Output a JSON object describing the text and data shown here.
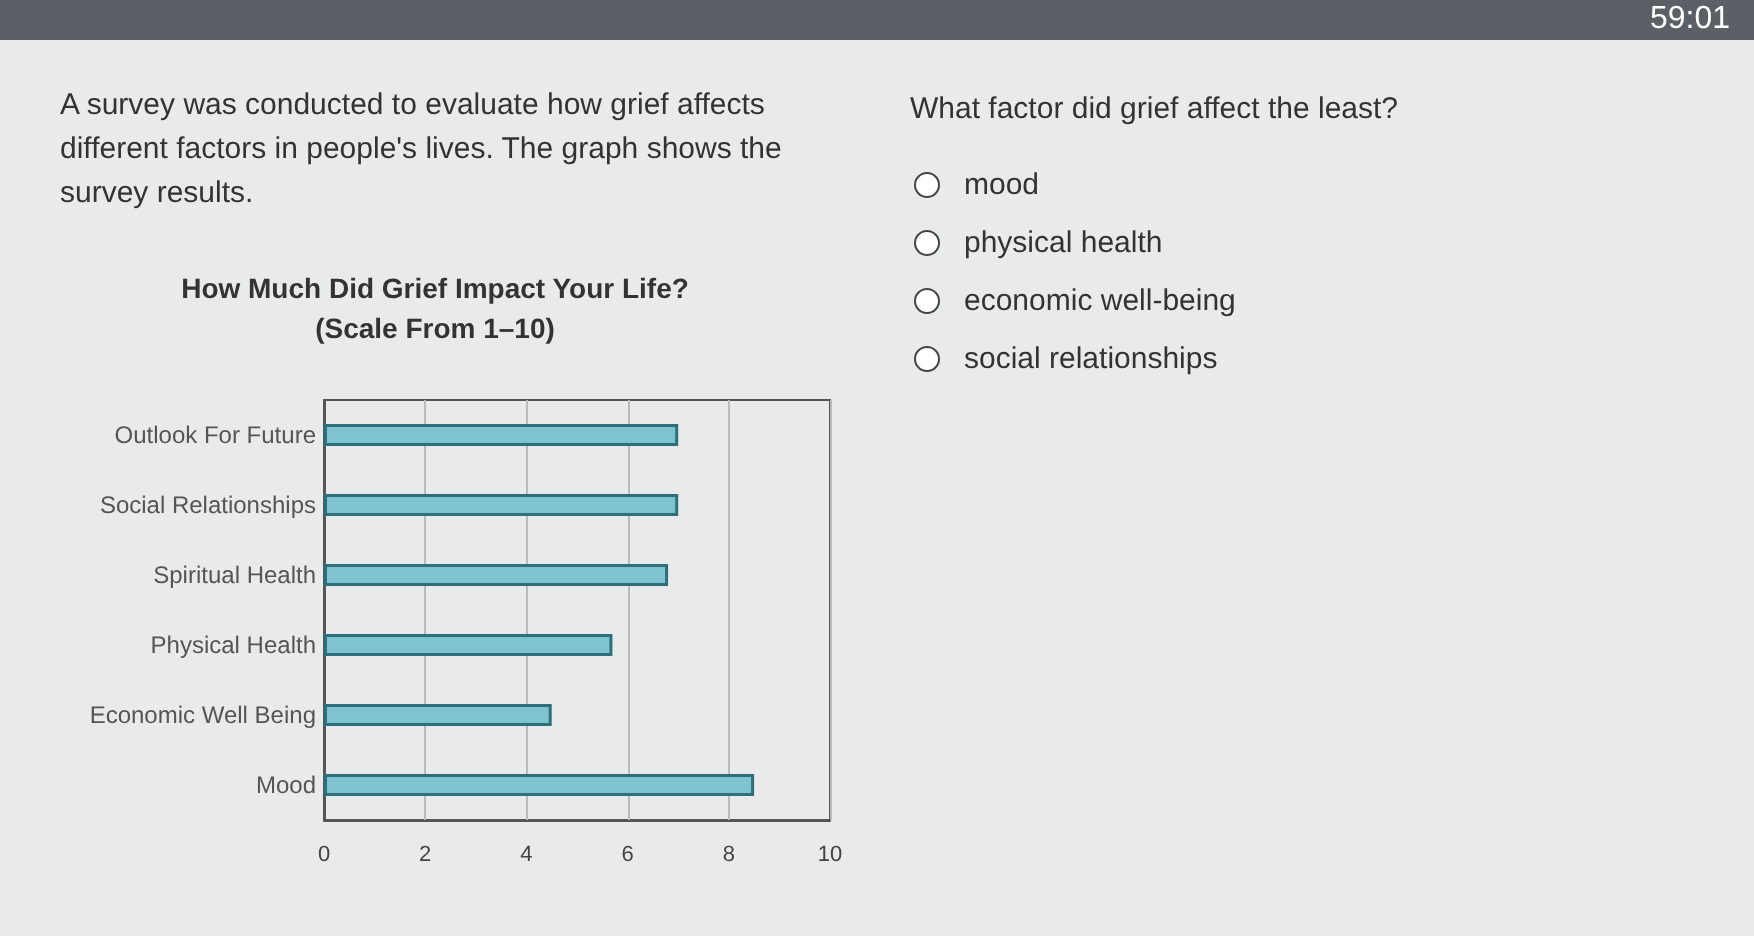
{
  "chart_data": {
    "type": "bar",
    "orientation": "horizontal",
    "title": "How Much Did Grief Impact Your Life?",
    "subtitle": "(Scale From 1–10)",
    "categories": [
      "Outlook For Future",
      "Social Relationships",
      "Spiritual Health",
      "Physical Health",
      "Economic Well Being",
      "Mood"
    ],
    "values": [
      7,
      7,
      6.8,
      5.7,
      4.5,
      8.5
    ],
    "color": "#7fc3cf",
    "xlim": [
      0,
      10
    ],
    "xticks": [
      0,
      2,
      4,
      6,
      8,
      10
    ],
    "grid": "x",
    "annotations": [
      "59:01",
      "A survey was conducted to evaluate how grief affects different factors in people's lives. The graph shows the survey results.",
      "What factor did grief affect the least?",
      "mood",
      "physical health",
      "economic well-being",
      "social relationships"
    ]
  }
}
